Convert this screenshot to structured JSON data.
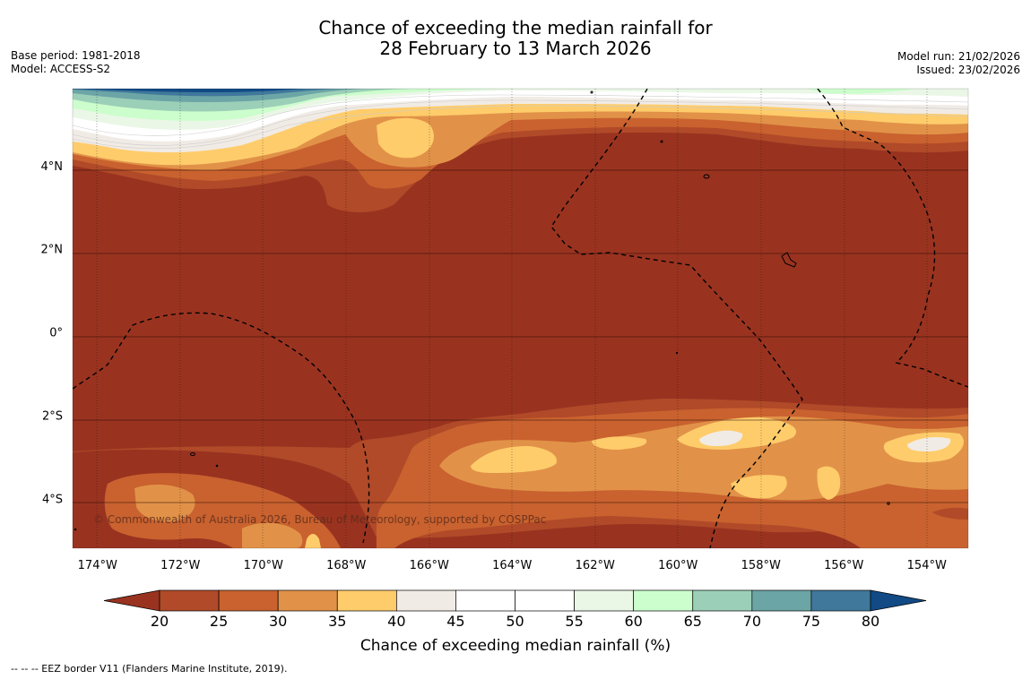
{
  "title": {
    "line1": "Chance of exceeding the median rainfall for",
    "line2": "28 February to 13 March 2026"
  },
  "meta": {
    "base_period": "Base period: 1981-2018",
    "model": "Model: ACCESS-S2",
    "model_run": "Model run: 21/02/2026",
    "issued": "Issued: 23/02/2026"
  },
  "map": {
    "lon_range": [
      -174.6,
      -153.0
    ],
    "lat_range": [
      -5.2,
      5.85
    ],
    "lon_ticks": [
      {
        "value": -174,
        "label": "174°W"
      },
      {
        "value": -172,
        "label": "172°W"
      },
      {
        "value": -170,
        "label": "170°W"
      },
      {
        "value": -168,
        "label": "168°W"
      },
      {
        "value": -166,
        "label": "166°W"
      },
      {
        "value": -164,
        "label": "164°W"
      },
      {
        "value": -162,
        "label": "162°W"
      },
      {
        "value": -160,
        "label": "160°W"
      },
      {
        "value": -158,
        "label": "158°W"
      },
      {
        "value": -156,
        "label": "156°W"
      },
      {
        "value": -154,
        "label": "154°W"
      }
    ],
    "lat_ticks": [
      {
        "value": 4,
        "label": "4°N"
      },
      {
        "value": 2,
        "label": "2°N"
      },
      {
        "value": 0,
        "label": "0°"
      },
      {
        "value": -2,
        "label": "2°S"
      },
      {
        "value": -4,
        "label": "4°S"
      }
    ],
    "copyright": "© Commonwealth of Australia 2026, Bureau of Meteorology, supported by COSPPac"
  },
  "colorbar": {
    "title": "Chance of exceeding median rainfall (%)",
    "levels": [
      "20",
      "25",
      "30",
      "35",
      "40",
      "45",
      "50",
      "55",
      "60",
      "65",
      "70",
      "75",
      "80"
    ],
    "colors": [
      "#993320",
      "#b04a28",
      "#c9622f",
      "#e19248",
      "#fecc6b",
      "#f1ebe5",
      "#ffffff",
      "#ffffff",
      "#eaf7e6",
      "#ccfdcc",
      "#9ccfb8",
      "#6ca5a6",
      "#3f789b",
      "#114a85"
    ]
  },
  "footnote": "--  --  -- EEZ border V11 (Flanders Marine Institute, 2019)."
}
